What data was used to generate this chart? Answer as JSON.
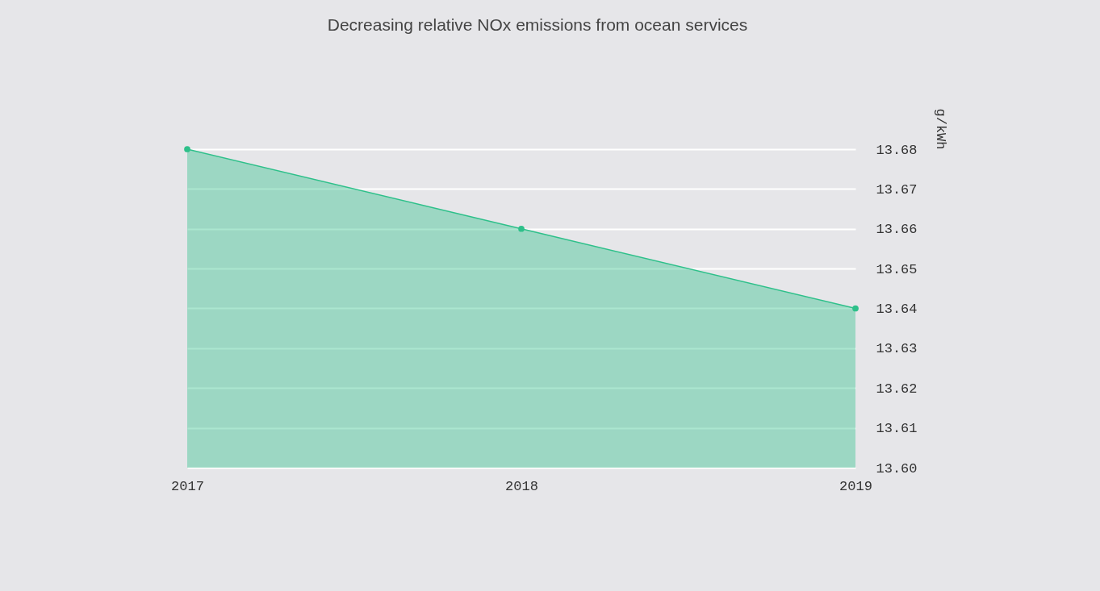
{
  "chart_data": {
    "type": "area",
    "title": "Decreasing relative NOx emissions from ocean services",
    "ylabel": "g/kWh",
    "categories": [
      "2017",
      "2018",
      "2019"
    ],
    "series": [
      {
        "color": "#2ec08a",
        "values": [
          13.68,
          13.66,
          13.64
        ]
      }
    ],
    "ylim": [
      13.6,
      13.68
    ],
    "yticks": [
      {
        "value": 13.6,
        "label": "13.60"
      },
      13.61,
      13.62,
      13.63,
      13.64,
      13.65,
      13.66,
      13.67,
      13.68
    ],
    "grid": "y",
    "marker": "circle"
  }
}
